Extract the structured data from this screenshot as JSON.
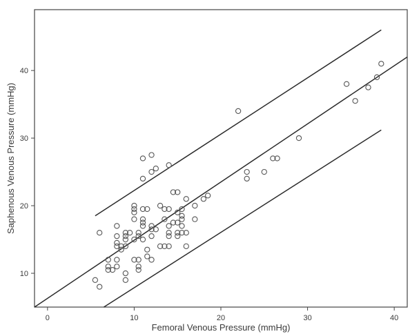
{
  "chart_data": {
    "type": "scatter",
    "title": "",
    "xlabel": "Femoral Venous Pressure (mmHg)",
    "ylabel": "Saphenous Venous Pressure (mmHg)",
    "xlim": [
      -1.5,
      41.5
    ],
    "ylim": [
      5,
      49
    ],
    "xticks": [
      0,
      10,
      20,
      30,
      40
    ],
    "yticks": [
      10,
      20,
      30,
      40
    ],
    "grid": false,
    "colors": {
      "frame": "#444444",
      "points": "#555555",
      "lines": "#2b2b2b"
    },
    "points": [
      [
        5.5,
        9.0
      ],
      [
        6.0,
        8.0
      ],
      [
        6.0,
        16.0
      ],
      [
        7.0,
        12.0
      ],
      [
        7.0,
        11.0
      ],
      [
        7.0,
        10.5
      ],
      [
        7.5,
        10.5
      ],
      [
        8.0,
        17.0
      ],
      [
        8.0,
        15.5
      ],
      [
        8.0,
        14.5
      ],
      [
        8.0,
        14.0
      ],
      [
        8.0,
        12.0
      ],
      [
        8.0,
        11.0
      ],
      [
        8.5,
        14.0
      ],
      [
        8.5,
        13.5
      ],
      [
        9.0,
        16.0
      ],
      [
        9.0,
        15.5
      ],
      [
        9.0,
        15.0
      ],
      [
        9.0,
        14.0
      ],
      [
        9.0,
        10.0
      ],
      [
        9.0,
        9.0
      ],
      [
        9.5,
        16.0
      ],
      [
        10.0,
        20.0
      ],
      [
        10.0,
        19.5
      ],
      [
        10.0,
        19.0
      ],
      [
        10.0,
        18.0
      ],
      [
        10.0,
        15.0
      ],
      [
        10.0,
        12.0
      ],
      [
        10.5,
        16.0
      ],
      [
        10.5,
        15.5
      ],
      [
        10.5,
        12.0
      ],
      [
        10.5,
        11.0
      ],
      [
        10.5,
        10.5
      ],
      [
        11.0,
        27.0
      ],
      [
        11.0,
        24.0
      ],
      [
        11.0,
        19.5
      ],
      [
        11.0,
        18.0
      ],
      [
        11.0,
        17.5
      ],
      [
        11.0,
        17.0
      ],
      [
        11.0,
        15.0
      ],
      [
        11.5,
        19.5
      ],
      [
        11.5,
        13.5
      ],
      [
        11.5,
        12.5
      ],
      [
        12.0,
        27.5
      ],
      [
        12.0,
        25.0
      ],
      [
        12.0,
        17.0
      ],
      [
        12.0,
        16.5
      ],
      [
        12.0,
        15.5
      ],
      [
        12.0,
        12.0
      ],
      [
        12.5,
        25.5
      ],
      [
        12.5,
        16.5
      ],
      [
        13.0,
        20.0
      ],
      [
        13.0,
        14.0
      ],
      [
        13.5,
        19.5
      ],
      [
        13.5,
        18.0
      ],
      [
        13.5,
        14.0
      ],
      [
        14.0,
        26.0
      ],
      [
        14.0,
        19.5
      ],
      [
        14.0,
        17.0
      ],
      [
        14.0,
        16.0
      ],
      [
        14.0,
        15.5
      ],
      [
        14.0,
        14.0
      ],
      [
        14.5,
        22.0
      ],
      [
        14.5,
        17.5
      ],
      [
        15.0,
        22.0
      ],
      [
        15.0,
        19.0
      ],
      [
        15.0,
        17.5
      ],
      [
        15.0,
        16.0
      ],
      [
        15.0,
        15.5
      ],
      [
        15.5,
        19.5
      ],
      [
        15.5,
        18.5
      ],
      [
        15.5,
        18.0
      ],
      [
        15.5,
        17.0
      ],
      [
        15.5,
        16.0
      ],
      [
        16.0,
        21.0
      ],
      [
        16.0,
        16.0
      ],
      [
        16.0,
        14.0
      ],
      [
        17.0,
        20.0
      ],
      [
        17.0,
        18.0
      ],
      [
        18.0,
        21.0
      ],
      [
        18.5,
        21.5
      ],
      [
        22.0,
        34.0
      ],
      [
        23.0,
        25.0
      ],
      [
        23.0,
        24.0
      ],
      [
        25.0,
        25.0
      ],
      [
        26.0,
        27.0
      ],
      [
        26.5,
        27.0
      ],
      [
        29.0,
        30.0
      ],
      [
        34.5,
        38.0
      ],
      [
        35.5,
        35.5
      ],
      [
        37.0,
        37.5
      ],
      [
        38.0,
        39.0
      ],
      [
        38.5,
        41.0
      ]
    ],
    "reference_lines": [
      {
        "x": [
          -1.5,
          41.5
        ],
        "y": [
          5.0,
          42.0
        ]
      },
      {
        "x": [
          5.5,
          38.5
        ],
        "y": [
          18.5,
          46.0
        ]
      },
      {
        "x": [
          6.5,
          38.5
        ],
        "y": [
          5.0,
          31.2
        ]
      }
    ]
  }
}
